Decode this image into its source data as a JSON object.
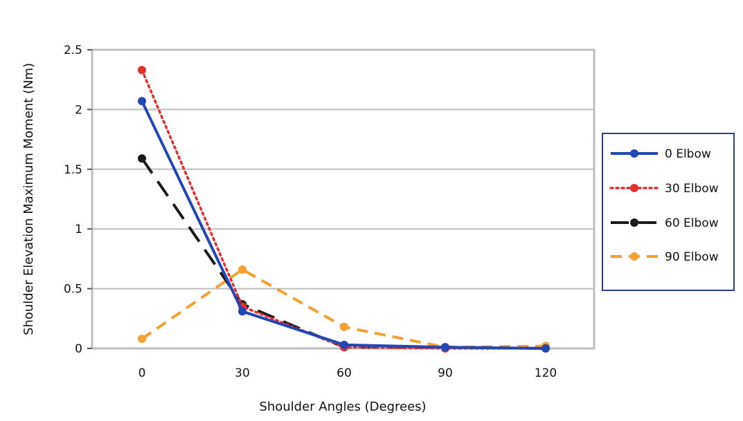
{
  "chart_data": {
    "type": "line",
    "x": [
      0,
      30,
      60,
      90,
      120
    ],
    "xlabel": "Shoulder Angles (Degrees)",
    "ylabel": "Shoulder Elevation Maximum Moment (Nm)",
    "ylim": [
      0,
      2.5
    ],
    "yticks": [
      "0",
      "0.5",
      "1",
      "1.5",
      "2",
      "2.5"
    ],
    "xticks": [
      "0",
      "30",
      "60",
      "90",
      "120"
    ],
    "grid": "horizontal",
    "legend_position": "right",
    "series": [
      {
        "name": "0 Elbow",
        "values": [
          2.07,
          0.31,
          0.03,
          0.01,
          0.0
        ],
        "color": "#2146b5",
        "dash": "solid"
      },
      {
        "name": "30 Elbow",
        "values": [
          2.33,
          0.35,
          0.01,
          0.0,
          0.0
        ],
        "color": "#e03030",
        "dash": "dotted"
      },
      {
        "name": "60 Elbow",
        "values": [
          1.59,
          0.37,
          0.01,
          0.01,
          0.0
        ],
        "color": "#1a1a1a",
        "dash": "longdash"
      },
      {
        "name": "90 Elbow",
        "values": [
          0.08,
          0.66,
          0.18,
          0.01,
          0.02
        ],
        "color": "#f5a030",
        "dash": "dashed"
      }
    ]
  }
}
